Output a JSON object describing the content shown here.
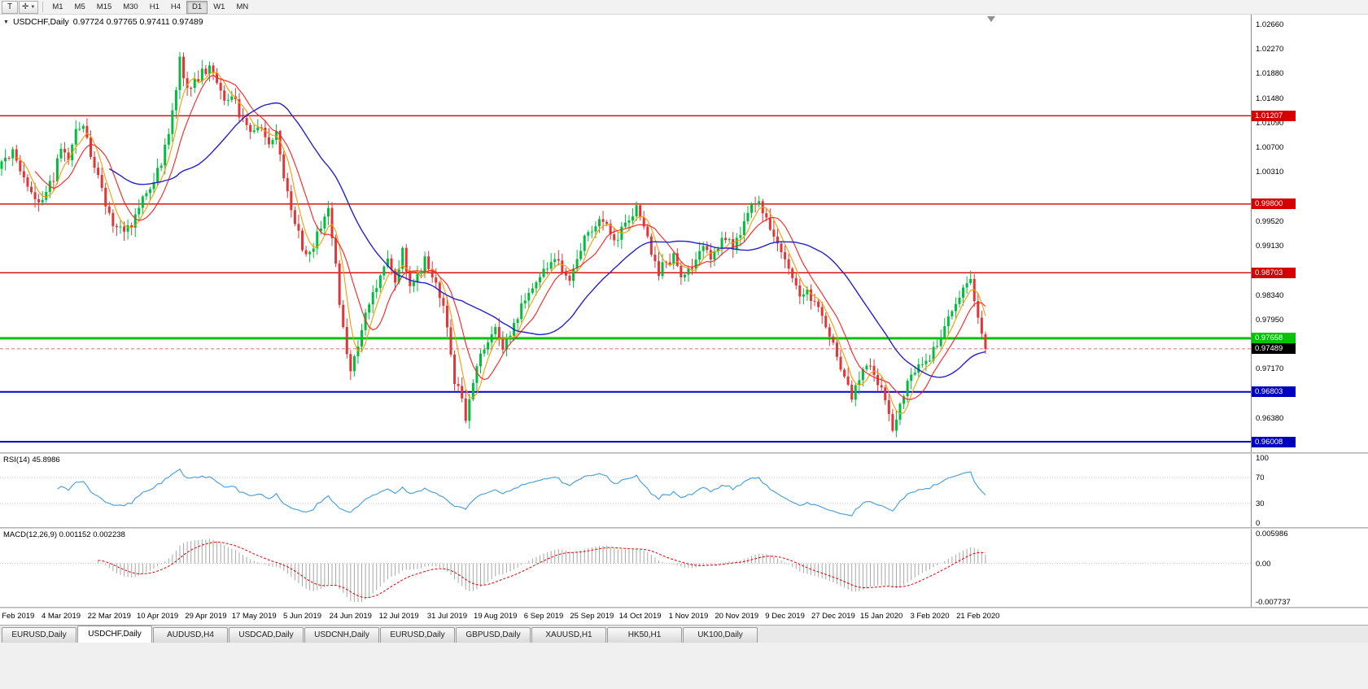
{
  "toolbar": {
    "tools": [
      {
        "name": "text-tool",
        "glyph": "T",
        "dropdown": false
      },
      {
        "name": "cursor-tool",
        "glyph": "✛",
        "dropdown": true
      }
    ],
    "timeframes": [
      "M1",
      "M5",
      "M15",
      "M30",
      "H1",
      "H4",
      "D1",
      "W1",
      "MN"
    ],
    "active_timeframe": "D1"
  },
  "chart_header": {
    "collapse_glyph": "▼",
    "symbol": "USDCHF,Daily",
    "ohlc": "0.97724 0.97765 0.97411 0.97489"
  },
  "price_axis": {
    "labels": [
      "1.02660",
      "1.02270",
      "1.01880",
      "1.01480",
      "1.01090",
      "1.00700",
      "1.00310",
      "0.99910",
      "0.99520",
      "0.99130",
      "0.98730",
      "0.98340",
      "0.97950",
      "0.97560",
      "0.97170",
      "0.96780",
      "0.96380",
      "0.95990"
    ]
  },
  "levels": [
    {
      "price": 1.01207,
      "label": "1.01207",
      "color": "#D40000",
      "width": 1.4
    },
    {
      "price": 0.998,
      "label": "0.99800",
      "color": "#D40000",
      "width": 1.4
    },
    {
      "price": 0.98703,
      "label": "0.98703",
      "color": "#D40000",
      "width": 1.4
    },
    {
      "price": 0.97658,
      "label": "0.97658",
      "color": "#00C400",
      "width": 3
    },
    {
      "price": 0.96803,
      "label": "0.96803",
      "color": "#0000C0",
      "width": 2
    },
    {
      "price": 0.96008,
      "label": "0.96008",
      "color": "#0000C0",
      "width": 2
    }
  ],
  "current_price": {
    "label": "0.97489",
    "value": 0.97489,
    "badge_color": "#000000"
  },
  "rsi": {
    "label": "RSI(14) 45.8986",
    "period": 14,
    "value": 45.8986,
    "scale_labels": [
      "100",
      "70",
      "30",
      "0"
    ],
    "guides": [
      70,
      30
    ],
    "line_color": "#4FA3DC"
  },
  "macd": {
    "label": "MACD(12,26,9) 0.001152 0.002238",
    "fast": 12,
    "slow": 26,
    "signal": 9,
    "macd_value": 0.001152,
    "signal_value": 0.002238,
    "scale_labels": [
      "0.005986",
      "0.00",
      "-0.007737"
    ],
    "scale_max": 0.005986,
    "scale_min": -0.007737,
    "hist_color": "#A6A6A6",
    "signal_color": "#E00000"
  },
  "date_axis": {
    "labels": [
      "13 Feb 2019",
      "4 Mar 2019",
      "22 Mar 2019",
      "10 Apr 2019",
      "29 Apr 2019",
      "17 May 2019",
      "5 Jun 2019",
      "24 Jun 2019",
      "12 Jul 2019",
      "31 Jul 2019",
      "19 Aug 2019",
      "6 Sep 2019",
      "25 Sep 2019",
      "14 Oct 2019",
      "1 Nov 2019",
      "20 Nov 2019",
      "9 Dec 2019",
      "27 Dec 2019",
      "15 Jan 2020",
      "3 Feb 2020",
      "21 Feb 2020"
    ]
  },
  "tabs": {
    "items": [
      "EURUSD,Daily",
      "USDCHF,Daily",
      "AUDUSD,H4",
      "USDCAD,Daily",
      "USDCNH,Daily",
      "EURUSD,Daily",
      "GBPUSD,Daily",
      "XAUUSD,H1",
      "HK50,H1",
      "UK100,Daily"
    ],
    "active_index": 1
  },
  "chart_data": {
    "type": "candlestick",
    "symbol": "USDCHF",
    "period": "Daily",
    "candle_count": 266,
    "price_range": {
      "top": 1.0282,
      "bottom": 0.9584
    },
    "ohlc_current": {
      "open": 0.97724,
      "high": 0.97765,
      "low": 0.97411,
      "close": 0.97489
    },
    "candle_up": "#00BE3C",
    "candle_down": "#E23535",
    "moving_averages": [
      {
        "period": 5,
        "color": "#FF9900",
        "width": 1.1
      },
      {
        "period": 10,
        "color": "#FF2020",
        "width": 1.1
      },
      {
        "period": 30,
        "color": "#2222CC",
        "width": 1.4
      }
    ],
    "trend_anchors": [
      [
        0,
        1.0048
      ],
      [
        3,
        1.0062
      ],
      [
        5,
        1.0035
      ],
      [
        8,
        0.9998
      ],
      [
        11,
        0.9982
      ],
      [
        14,
        1.0024
      ],
      [
        16,
        1.0068
      ],
      [
        18,
        1.0049
      ],
      [
        20,
        1.0096
      ],
      [
        22,
        1.0108
      ],
      [
        24,
        1.0058
      ],
      [
        27,
        1.0
      ],
      [
        30,
        0.9952
      ],
      [
        33,
        0.993
      ],
      [
        35,
        0.9948
      ],
      [
        38,
        0.9995
      ],
      [
        41,
        1.0012
      ],
      [
        43,
        1.0048
      ],
      [
        45,
        1.0096
      ],
      [
        47,
        1.0166
      ],
      [
        48,
        1.021
      ],
      [
        50,
        1.0162
      ],
      [
        52,
        1.0176
      ],
      [
        54,
        1.0188
      ],
      [
        56,
        1.0196
      ],
      [
        58,
        1.017
      ],
      [
        60,
        1.0142
      ],
      [
        62,
        1.0156
      ],
      [
        64,
        1.0124
      ],
      [
        66,
        1.0104
      ],
      [
        68,
        1.009
      ],
      [
        70,
        1.0108
      ],
      [
        72,
        1.0072
      ],
      [
        74,
        1.0092
      ],
      [
        76,
        1.0024
      ],
      [
        78,
        0.9966
      ],
      [
        80,
        0.993
      ],
      [
        82,
        0.9894
      ],
      [
        84,
        0.9916
      ],
      [
        86,
        0.9948
      ],
      [
        88,
        0.9968
      ],
      [
        90,
        0.989
      ],
      [
        91,
        0.982
      ],
      [
        93,
        0.9748
      ],
      [
        94,
        0.9716
      ],
      [
        96,
        0.9758
      ],
      [
        98,
        0.98
      ],
      [
        100,
        0.9842
      ],
      [
        102,
        0.986
      ],
      [
        104,
        0.9886
      ],
      [
        106,
        0.9858
      ],
      [
        108,
        0.9902
      ],
      [
        110,
        0.9848
      ],
      [
        112,
        0.9864
      ],
      [
        114,
        0.989
      ],
      [
        116,
        0.9868
      ],
      [
        118,
        0.9838
      ],
      [
        120,
        0.9788
      ],
      [
        122,
        0.97
      ],
      [
        124,
        0.9668
      ],
      [
        125,
        0.964
      ],
      [
        127,
        0.97
      ],
      [
        129,
        0.9738
      ],
      [
        131,
        0.976
      ],
      [
        133,
        0.9786
      ],
      [
        135,
        0.9752
      ],
      [
        137,
        0.9772
      ],
      [
        139,
        0.98
      ],
      [
        141,
        0.9828
      ],
      [
        143,
        0.985
      ],
      [
        145,
        0.9866
      ],
      [
        147,
        0.9878
      ],
      [
        149,
        0.9898
      ],
      [
        151,
        0.9874
      ],
      [
        153,
        0.9862
      ],
      [
        155,
        0.99
      ],
      [
        157,
        0.9922
      ],
      [
        159,
        0.9938
      ],
      [
        161,
        0.9962
      ],
      [
        163,
        0.9942
      ],
      [
        165,
        0.9918
      ],
      [
        167,
        0.9936
      ],
      [
        169,
        0.9958
      ],
      [
        171,
        0.997
      ],
      [
        173,
        0.9936
      ],
      [
        175,
        0.9906
      ],
      [
        177,
        0.9872
      ],
      [
        179,
        0.9888
      ],
      [
        181,
        0.9894
      ],
      [
        183,
        0.9862
      ],
      [
        185,
        0.9872
      ],
      [
        187,
        0.9894
      ],
      [
        189,
        0.9908
      ],
      [
        191,
        0.989
      ],
      [
        193,
        0.9914
      ],
      [
        195,
        0.993
      ],
      [
        197,
        0.9906
      ],
      [
        199,
        0.9938
      ],
      [
        201,
        0.996
      ],
      [
        203,
        0.9986
      ],
      [
        205,
        0.9968
      ],
      [
        207,
        0.9946
      ],
      [
        209,
        0.9916
      ],
      [
        211,
        0.9886
      ],
      [
        213,
        0.986
      ],
      [
        215,
        0.9836
      ],
      [
        217,
        0.9846
      ],
      [
        219,
        0.982
      ],
      [
        221,
        0.9798
      ],
      [
        223,
        0.9768
      ],
      [
        225,
        0.974
      ],
      [
        227,
        0.97
      ],
      [
        229,
        0.9672
      ],
      [
        231,
        0.97
      ],
      [
        233,
        0.9724
      ],
      [
        235,
        0.971
      ],
      [
        237,
        0.9686
      ],
      [
        239,
        0.965
      ],
      [
        240,
        0.9624
      ],
      [
        242,
        0.9662
      ],
      [
        244,
        0.9698
      ],
      [
        246,
        0.9716
      ],
      [
        248,
        0.9722
      ],
      [
        250,
        0.9736
      ],
      [
        252,
        0.9754
      ],
      [
        254,
        0.9782
      ],
      [
        256,
        0.981
      ],
      [
        258,
        0.9838
      ],
      [
        260,
        0.9848
      ],
      [
        261,
        0.9856
      ],
      [
        262,
        0.9832
      ],
      [
        263,
        0.9796
      ],
      [
        264,
        0.9768
      ],
      [
        265,
        0.97489
      ]
    ]
  }
}
